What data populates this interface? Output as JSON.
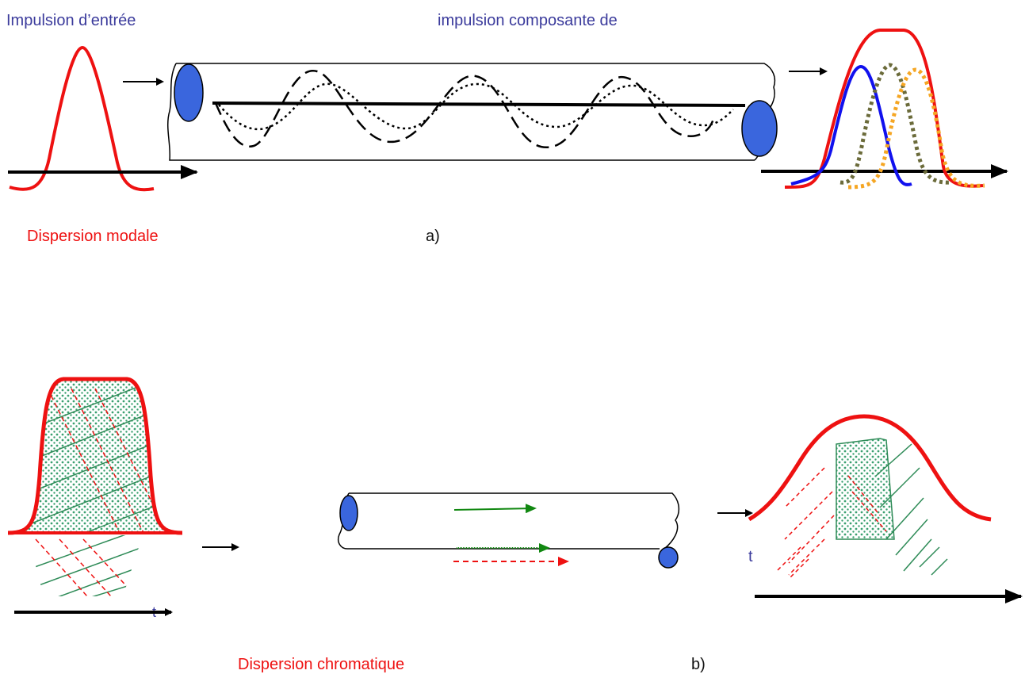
{
  "labels": {
    "input_pulse": "Impulsion d’entrée",
    "component_pulse": "impulsion composante de",
    "modal_dispersion": "Dispersion modale",
    "part_a": "a)",
    "chromatic_dispersion": "Dispersion chromatique",
    "part_b": "b)",
    "t_left": "t",
    "t_right": "t"
  },
  "colors": {
    "pulse_red": "#ee1111",
    "core_blue": "#3a66dd",
    "label_blue": "#3b3b9c",
    "mode_blue": "#1111ee",
    "mode_olive": "#6b6b3a",
    "mode_orange": "#f5a623",
    "hatch_green": "#2e8b57",
    "dot_green": "#3aa070",
    "arrow_green": "#118811"
  }
}
